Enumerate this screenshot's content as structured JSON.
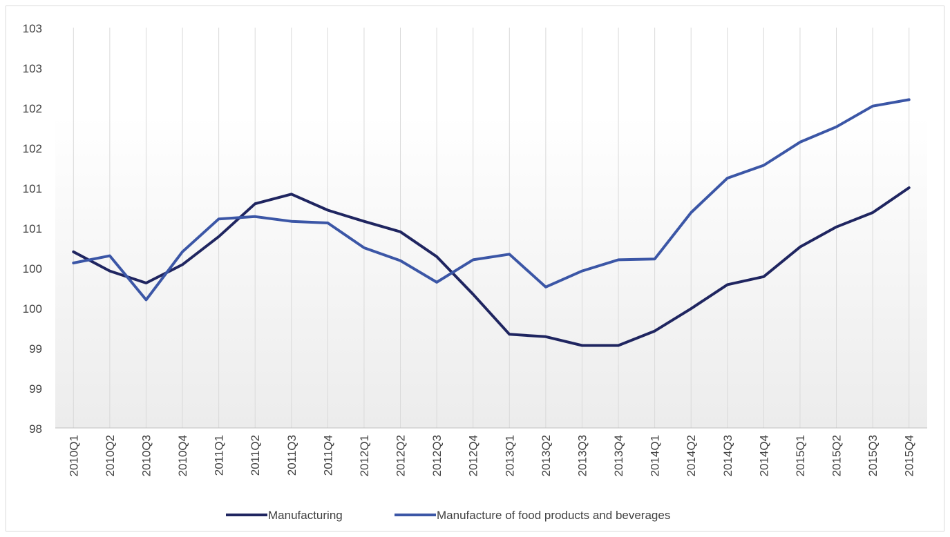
{
  "chart_data": {
    "type": "line",
    "title": "",
    "xlabel": "",
    "ylabel": "",
    "categories": [
      "2010Q1",
      "2010Q2",
      "2010Q3",
      "2010Q4",
      "2011Q1",
      "2011Q2",
      "2011Q3",
      "2011Q4",
      "2012Q1",
      "2012Q2",
      "2012Q3",
      "2012Q4",
      "2013Q1",
      "2013Q2",
      "2013Q3",
      "2013Q4",
      "2014Q1",
      "2014Q2",
      "2014Q3",
      "2014Q4",
      "2015Q1",
      "2015Q2",
      "2015Q3",
      "2015Q4"
    ],
    "ylim": [
      98,
      103
    ],
    "y_tick_values": [
      98,
      98.5,
      99,
      99.5,
      100,
      100.5,
      101,
      101.5,
      102,
      102.5,
      103
    ],
    "y_tick_labels": [
      "98",
      "99",
      "99",
      "100",
      "100",
      "101",
      "101",
      "102",
      "102",
      "103",
      "103"
    ],
    "grid": "vertical",
    "legend_position": "bottom",
    "series": [
      {
        "name": "Manufacturing",
        "color": "#1f2560",
        "values": [
          100.2,
          99.96,
          99.81,
          100.04,
          100.39,
          100.8,
          100.92,
          100.72,
          100.58,
          100.45,
          100.14,
          99.67,
          99.17,
          99.14,
          99.03,
          99.03,
          99.21,
          99.49,
          99.79,
          99.89,
          100.26,
          100.51,
          100.69,
          101.0
        ]
      },
      {
        "name": "Manufacture of food products and beverages",
        "color": "#3b56a6",
        "values": [
          100.06,
          100.15,
          99.6,
          100.2,
          100.61,
          100.64,
          100.58,
          100.56,
          100.25,
          100.09,
          99.82,
          100.1,
          100.17,
          99.76,
          99.96,
          100.1,
          100.11,
          100.69,
          101.12,
          101.28,
          101.57,
          101.76,
          102.02,
          102.1
        ]
      }
    ]
  }
}
